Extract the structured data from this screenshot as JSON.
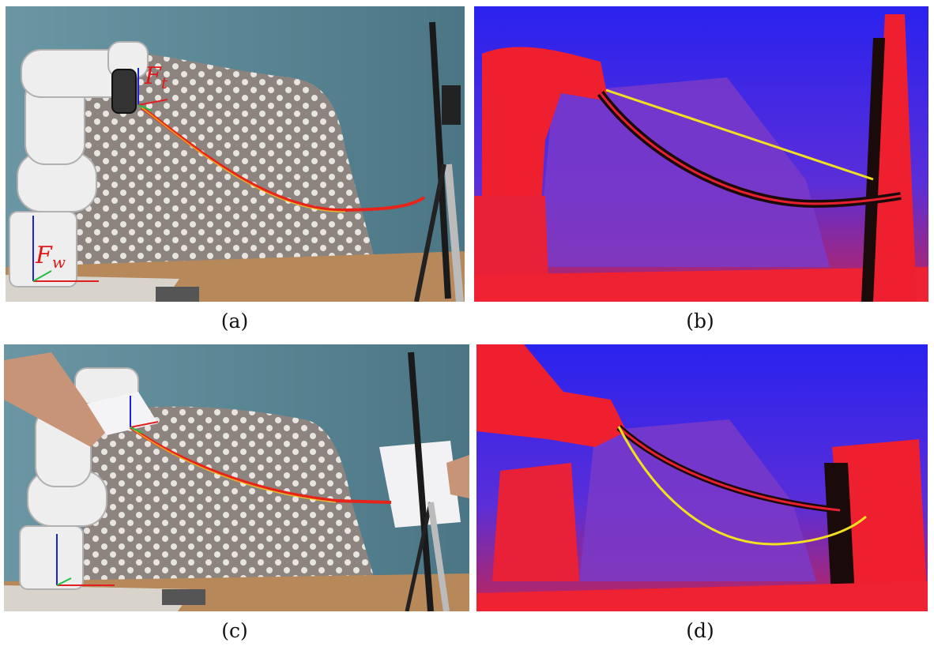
{
  "captions": {
    "a": "(a)",
    "b": "(b)",
    "c": "(c)",
    "d": "(d)"
  },
  "frame_labels": {
    "tool": "F",
    "tool_sub": "t",
    "world": "F",
    "world_sub": "w"
  },
  "colors": {
    "rope": "#e8241a",
    "rope_model": "#f0e020",
    "axis_x": "#e02020",
    "axis_y": "#20c040",
    "axis_z": "#2020e0",
    "depth_far": "#2a22ee",
    "depth_mid": "#7a3ac8",
    "depth_near": "#ee2030",
    "wall": "#5f8a99",
    "table": "#b8895a"
  }
}
